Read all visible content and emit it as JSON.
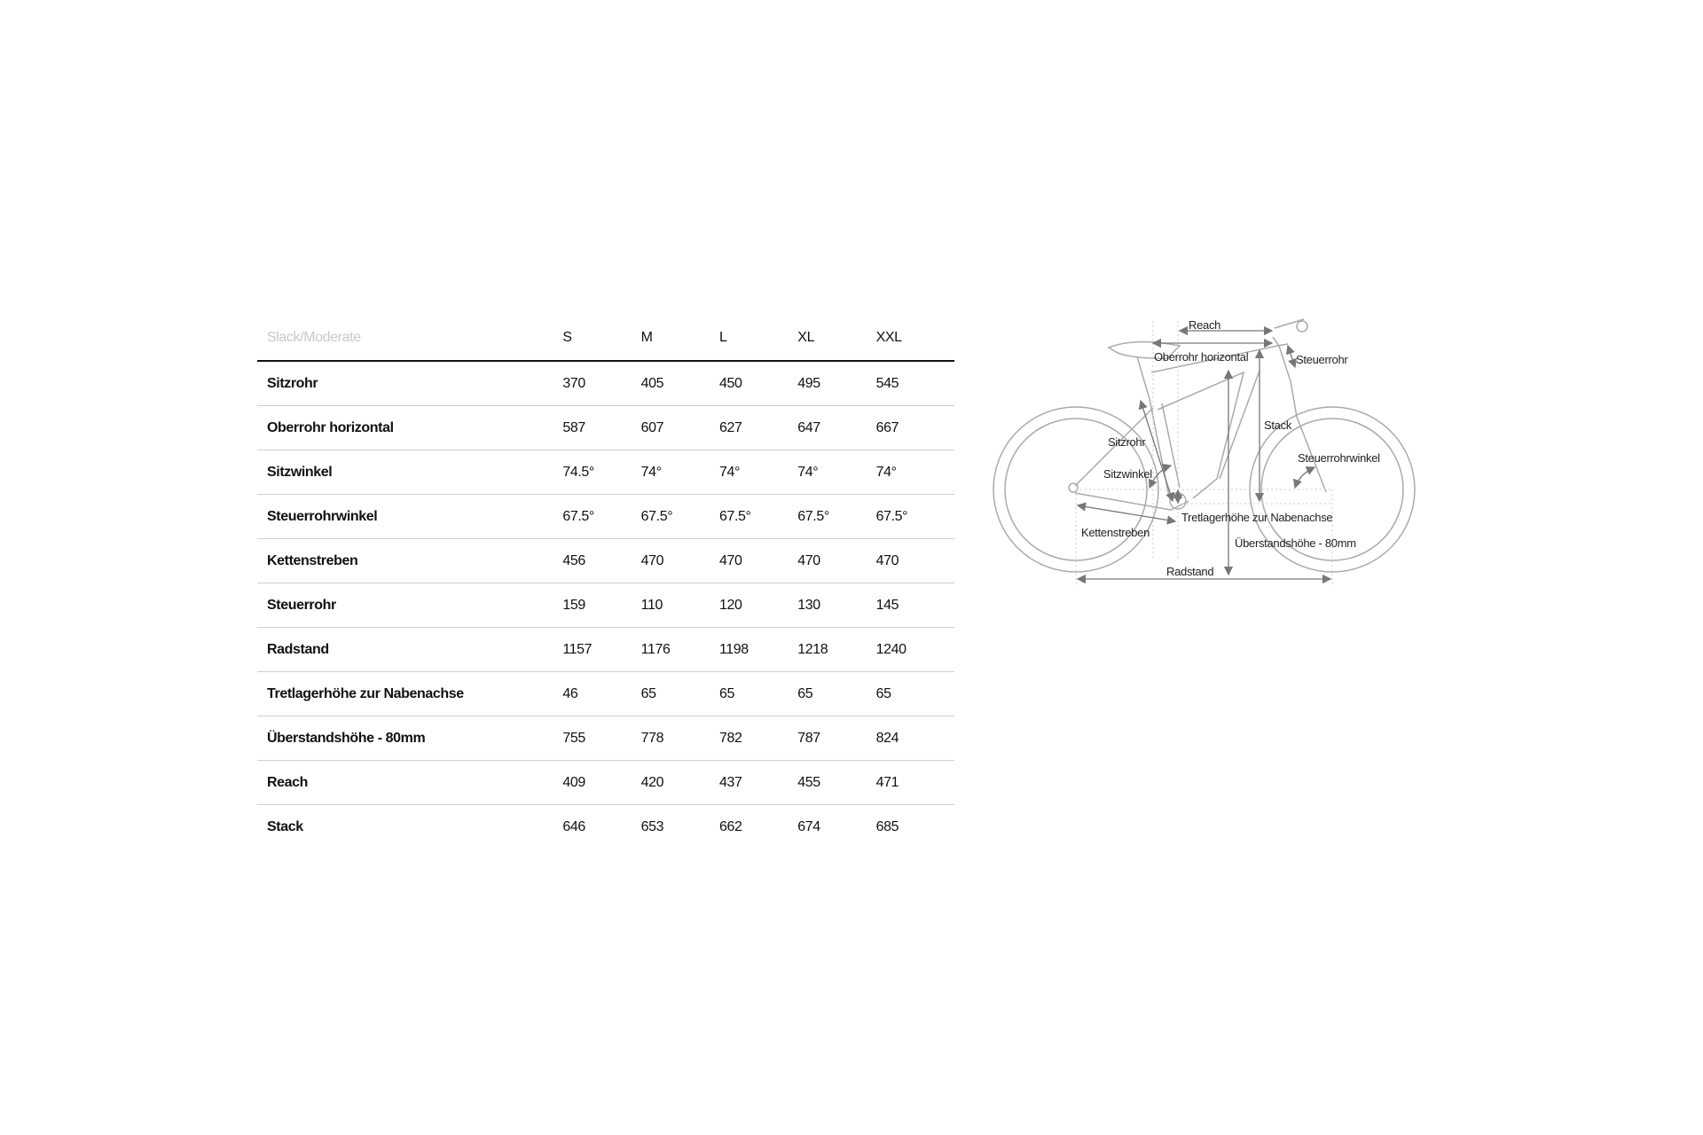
{
  "table": {
    "category": "Slack/Moderate",
    "sizes": [
      "S",
      "M",
      "L",
      "XL",
      "XXL"
    ],
    "rows": [
      {
        "label": "Sitzrohr",
        "values": [
          "370",
          "405",
          "450",
          "495",
          "545"
        ]
      },
      {
        "label": "Oberrohr horizontal",
        "values": [
          "587",
          "607",
          "627",
          "647",
          "667"
        ]
      },
      {
        "label": "Sitzwinkel",
        "values": [
          "74.5°",
          "74°",
          "74°",
          "74°",
          "74°"
        ]
      },
      {
        "label": "Steuerrohrwinkel",
        "values": [
          "67.5°",
          "67.5°",
          "67.5°",
          "67.5°",
          "67.5°"
        ]
      },
      {
        "label": "Kettenstreben",
        "values": [
          "456",
          "470",
          "470",
          "470",
          "470"
        ]
      },
      {
        "label": "Steuerrohr",
        "values": [
          "159",
          "110",
          "120",
          "130",
          "145"
        ]
      },
      {
        "label": "Radstand",
        "values": [
          "1157",
          "1176",
          "1198",
          "1218",
          "1240"
        ]
      },
      {
        "label": "Tretlagerhöhe zur Nabenachse",
        "values": [
          "46",
          "65",
          "65",
          "65",
          "65"
        ]
      },
      {
        "label": "Überstandshöhe - 80mm",
        "values": [
          "755",
          "778",
          "782",
          "787",
          "824"
        ]
      },
      {
        "label": "Reach",
        "values": [
          "409",
          "420",
          "437",
          "455",
          "471"
        ]
      },
      {
        "label": "Stack",
        "values": [
          "646",
          "653",
          "662",
          "674",
          "685"
        ]
      }
    ]
  },
  "diagram": {
    "labels": {
      "reach": "Reach",
      "top_tube": "Oberrohr horizontal",
      "head_tube": "Steuerrohr",
      "stack": "Stack",
      "seat_tube": "Sitzrohr",
      "head_angle": "Steuerrohrwinkel",
      "seat_angle": "Sitzwinkel",
      "bb_drop": "Tretlagerhöhe zur Nabenachse",
      "chainstay": "Kettenstreben",
      "standover": "Überstandshöhe - 80mm",
      "wheelbase": "Radstand"
    },
    "line_color": "#a8a8a8",
    "arrow_color": "#777777"
  }
}
